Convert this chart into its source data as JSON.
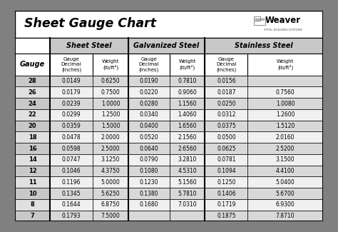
{
  "title": "Sheet Gauge Chart",
  "bg_outer": "#808080",
  "bg_inner": "#ffffff",
  "header_bg": "#c8c8c8",
  "row_alt_dark": "#d8d8d8",
  "row_alt_light": "#f0f0f0",
  "gauge_cell_dark": "#c8c8c8",
  "gauge_cell_light": "#e0e0e0",
  "section_headers": [
    "Sheet Steel",
    "Galvanized Steel",
    "Stainless Steel"
  ],
  "gauges": [
    28,
    26,
    24,
    22,
    20,
    18,
    16,
    14,
    12,
    11,
    10,
    8,
    7
  ],
  "sheet_steel_decimal": [
    "0.0149",
    "0.0179",
    "0.0239",
    "0.0299",
    "0.0359",
    "0.0478",
    "0.0598",
    "0.0747",
    "0.1046",
    "0.1196",
    "0.1345",
    "0.1644",
    "0.1793"
  ],
  "sheet_steel_weight": [
    "0.6250",
    "0.7500",
    "1.0000",
    "1.2500",
    "1.5000",
    "2.0000",
    "2.5000",
    "3.1250",
    "4.3750",
    "5.0000",
    "5.6250",
    "6.8750",
    "7.5000"
  ],
  "galv_decimal": [
    "0.0190",
    "0.0220",
    "0.0280",
    "0.0340",
    "0.0400",
    "0.0520",
    "0.0640",
    "0.0790",
    "0.1080",
    "0.1230",
    "0.1380",
    "0.1680",
    ""
  ],
  "galv_weight": [
    "0.7810",
    "0.9060",
    "1.1560",
    "1.4060",
    "1.6560",
    "2.1560",
    "2.6560",
    "3.2810",
    "4.5310",
    "5.1560",
    "5.7810",
    "7.0310",
    ""
  ],
  "stainless_decimal": [
    "0.0156",
    "0.0187",
    "0.0250",
    "0.0312",
    "0.0375",
    "0.0500",
    "0.0625",
    "0.0781",
    "0.1094",
    "0.1250",
    "0.1406",
    "0.1719",
    "0.1875"
  ],
  "stainless_weight": [
    "",
    "0.7560",
    "1.0080",
    "1.2600",
    "1.5120",
    "2.0160",
    "2.5200",
    "3.1500",
    "4.4100",
    "5.0400",
    "5.6700",
    "6.9300",
    "7.8710"
  ]
}
